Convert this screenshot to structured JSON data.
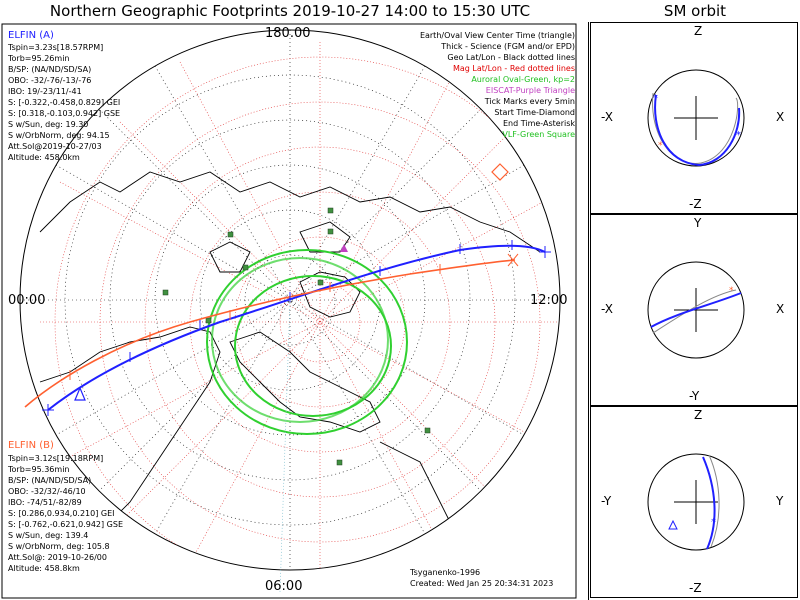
{
  "header": {
    "title": "Northern Geographic Footprints 2019-10-27 14:00 to 15:30 UTC",
    "orbit_title": "SM orbit"
  },
  "map": {
    "lat_top": "180.00",
    "left_time": "00:00",
    "right_time": "12:00",
    "bottom_time": "06:00"
  },
  "elfin_a": {
    "name": "ELFIN (A)",
    "color": "#2020ff",
    "lines": [
      "Tspin=3.23s[18.57RPM]",
      "Torb=95.26min",
      "B/SP: (NA/ND/SD/SA)",
      "OBO: -32/-76/-13/-76",
      "IBO: 19/-23/11/-41",
      "S: [-0.322,-0.458,0.829] GEI",
      "S: [0.318,-0.103,0.942] GSE",
      "S w/Sun, deg: 19.30",
      "S w/OrbNorm, deg: 94.15",
      "Att.Sol@2019-10-27/03",
      "Altitude: 458.0km"
    ]
  },
  "elfin_b": {
    "name": "ELFIN (B)",
    "color": "#ff6030",
    "lines": [
      "Tspin=3.12s[19.18RPM]",
      "Torb=95.36min",
      "B/SP: (NA/ND/SD/SA)",
      "OBO: -32/32/-46/10",
      "IBO: -74/51/-82/89",
      "S: [0.286,0.934,0.210] GEI",
      "S: [-0.762,-0.621,0.942] GSE",
      "S w/Sun, deg: 139.4",
      "S w/OrbNorm, deg: 105.8",
      "Att.Sol@: 2019-10-26/00",
      "Altitude: 458.8km"
    ]
  },
  "legend": {
    "items": [
      {
        "text": "Earth/Oval View Center Time (triangle)",
        "color": "#000000"
      },
      {
        "text": "Thick - Science (FGM and/or EPD)",
        "color": "#000000"
      },
      {
        "text": "Geo Lat/Lon - Black dotted lines",
        "color": "#000000"
      },
      {
        "text": "Mag Lat/Lon - Red dotted lines",
        "color": "#e00000"
      },
      {
        "text": "Auroral Oval-Green, kp=2",
        "color": "#20c020"
      },
      {
        "text": "EISCAT-Purple Triangle",
        "color": "#c040c0"
      },
      {
        "text": "Tick Marks every 5min",
        "color": "#000000"
      },
      {
        "text": "Start Time-Diamond",
        "color": "#000000"
      },
      {
        "text": "End Time-Asterisk",
        "color": "#000000"
      },
      {
        "text": "VLF-Green Square",
        "color": "#20c020"
      }
    ]
  },
  "footer": {
    "model": "Tsyganenko-1996",
    "created": "Created: Wed Jan 25 20:34:31 2023"
  },
  "orbit_panels": [
    {
      "left": "-X",
      "right": "X",
      "top": "Z",
      "bottom": "-Z"
    },
    {
      "left": "-X",
      "right": "X",
      "top": "Y",
      "bottom": "-Y"
    },
    {
      "left": "-Y",
      "right": "Y",
      "top": "Z",
      "bottom": "-Z"
    }
  ],
  "colors": {
    "orbit_a": "#2020ff",
    "orbit_b": "#ff6030",
    "auroral_oval": "#30d030",
    "mag_grid": "#e03030",
    "vlf": "#409040"
  }
}
